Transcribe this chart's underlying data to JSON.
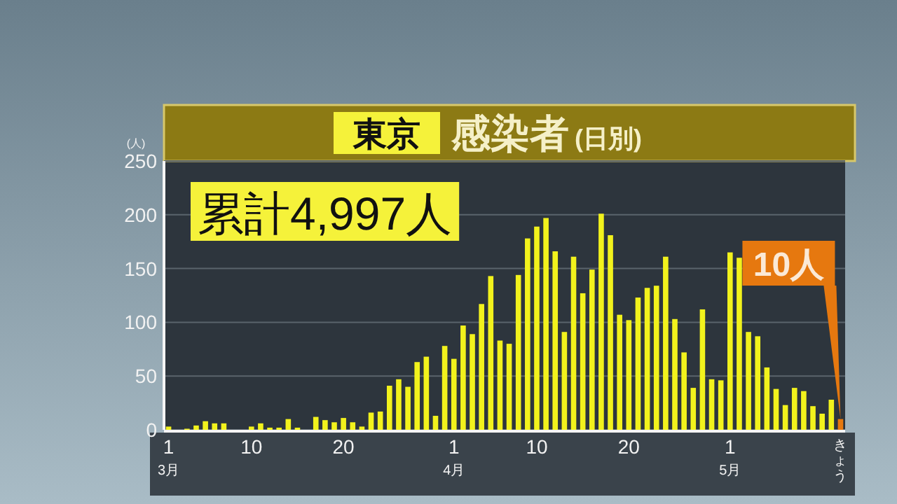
{
  "chart_data": {
    "type": "bar",
    "title": "東京",
    "subtitle": "感染者(日別)",
    "ylabel": "(人)",
    "categories": [
      "1\n3月",
      null,
      null,
      null,
      null,
      null,
      null,
      null,
      null,
      "10",
      null,
      null,
      null,
      null,
      null,
      null,
      null,
      null,
      null,
      "20",
      null,
      null,
      null,
      null,
      null,
      null,
      null,
      null,
      null,
      null,
      null,
      "1\n4月",
      null,
      null,
      null,
      null,
      null,
      null,
      null,
      null,
      "10",
      null,
      null,
      null,
      null,
      null,
      null,
      null,
      null,
      null,
      "20",
      null,
      null,
      null,
      null,
      null,
      null,
      null,
      null,
      null,
      null,
      "1\n5月",
      null,
      null,
      null,
      null,
      null,
      null,
      null,
      null,
      null,
      null,
      null,
      "きょう"
    ],
    "values": [
      3,
      0,
      1,
      4,
      8,
      6,
      6,
      0,
      0,
      3,
      6,
      2,
      2,
      10,
      2,
      0,
      12,
      9,
      7,
      11,
      7,
      3,
      16,
      17,
      41,
      47,
      40,
      63,
      68,
      13,
      78,
      66,
      97,
      89,
      117,
      143,
      83,
      80,
      144,
      178,
      189,
      197,
      166,
      91,
      161,
      127,
      149,
      201,
      181,
      107,
      102,
      123,
      132,
      134,
      161,
      103,
      72,
      39,
      112,
      47,
      46,
      165,
      160,
      91,
      87,
      58,
      38,
      23,
      39,
      36,
      22,
      15,
      28,
      10
    ],
    "colors": [
      "#f2f21c",
      "#f2f21c",
      "#f2f21c",
      "#f2f21c",
      "#f2f21c",
      "#f2f21c",
      "#f2f21c",
      "#f2f21c",
      "#f2f21c",
      "#f2f21c",
      "#f2f21c",
      "#f2f21c",
      "#f2f21c",
      "#f2f21c",
      "#f2f21c",
      "#f2f21c",
      "#f2f21c",
      "#f2f21c",
      "#f2f21c",
      "#f2f21c",
      "#f2f21c",
      "#f2f21c",
      "#f2f21c",
      "#f2f21c",
      "#f2f21c",
      "#f2f21c",
      "#f2f21c",
      "#f2f21c",
      "#f2f21c",
      "#f2f21c",
      "#f2f21c",
      "#f2f21c",
      "#f2f21c",
      "#f2f21c",
      "#f2f21c",
      "#f2f21c",
      "#f2f21c",
      "#f2f21c",
      "#f2f21c",
      "#f2f21c",
      "#f2f21c",
      "#f2f21c",
      "#f2f21c",
      "#f2f21c",
      "#f2f21c",
      "#f2f21c",
      "#f2f21c",
      "#f2f21c",
      "#f2f21c",
      "#f2f21c",
      "#f2f21c",
      "#f2f21c",
      "#f2f21c",
      "#f2f21c",
      "#f2f21c",
      "#f2f21c",
      "#f2f21c",
      "#f2f21c",
      "#f2f21c",
      "#f2f21c",
      "#f2f21c",
      "#f2f21c",
      "#f2f21c",
      "#f2f21c",
      "#f2f21c",
      "#f2f21c",
      "#f2f21c",
      "#f2f21c",
      "#f2f21c",
      "#f2f21c",
      "#f2f21c",
      "#f2f21c",
      "#f2f21c",
      "#e6780f"
    ],
    "value_labels": [
      null,
      null,
      null,
      null,
      null,
      null,
      null,
      null,
      null,
      null,
      null,
      null,
      null,
      null,
      null,
      null,
      null,
      null,
      null,
      null,
      null,
      null,
      null,
      null,
      null,
      null,
      null,
      null,
      null,
      null,
      null,
      null,
      null,
      null,
      null,
      null,
      null,
      null,
      null,
      null,
      null,
      null,
      null,
      null,
      null,
      null,
      null,
      null,
      null,
      null,
      null,
      null,
      null,
      null,
      null,
      null,
      null,
      null,
      null,
      null,
      null,
      null,
      null,
      null,
      null,
      null,
      null,
      null,
      null,
      null,
      null,
      null,
      null,
      "10人"
    ],
    "annotations": [
      "累計4,997人"
    ],
    "ylim": [
      0,
      250
    ],
    "yticks": [
      0,
      50,
      100,
      150,
      200,
      250
    ],
    "grid": "y"
  }
}
